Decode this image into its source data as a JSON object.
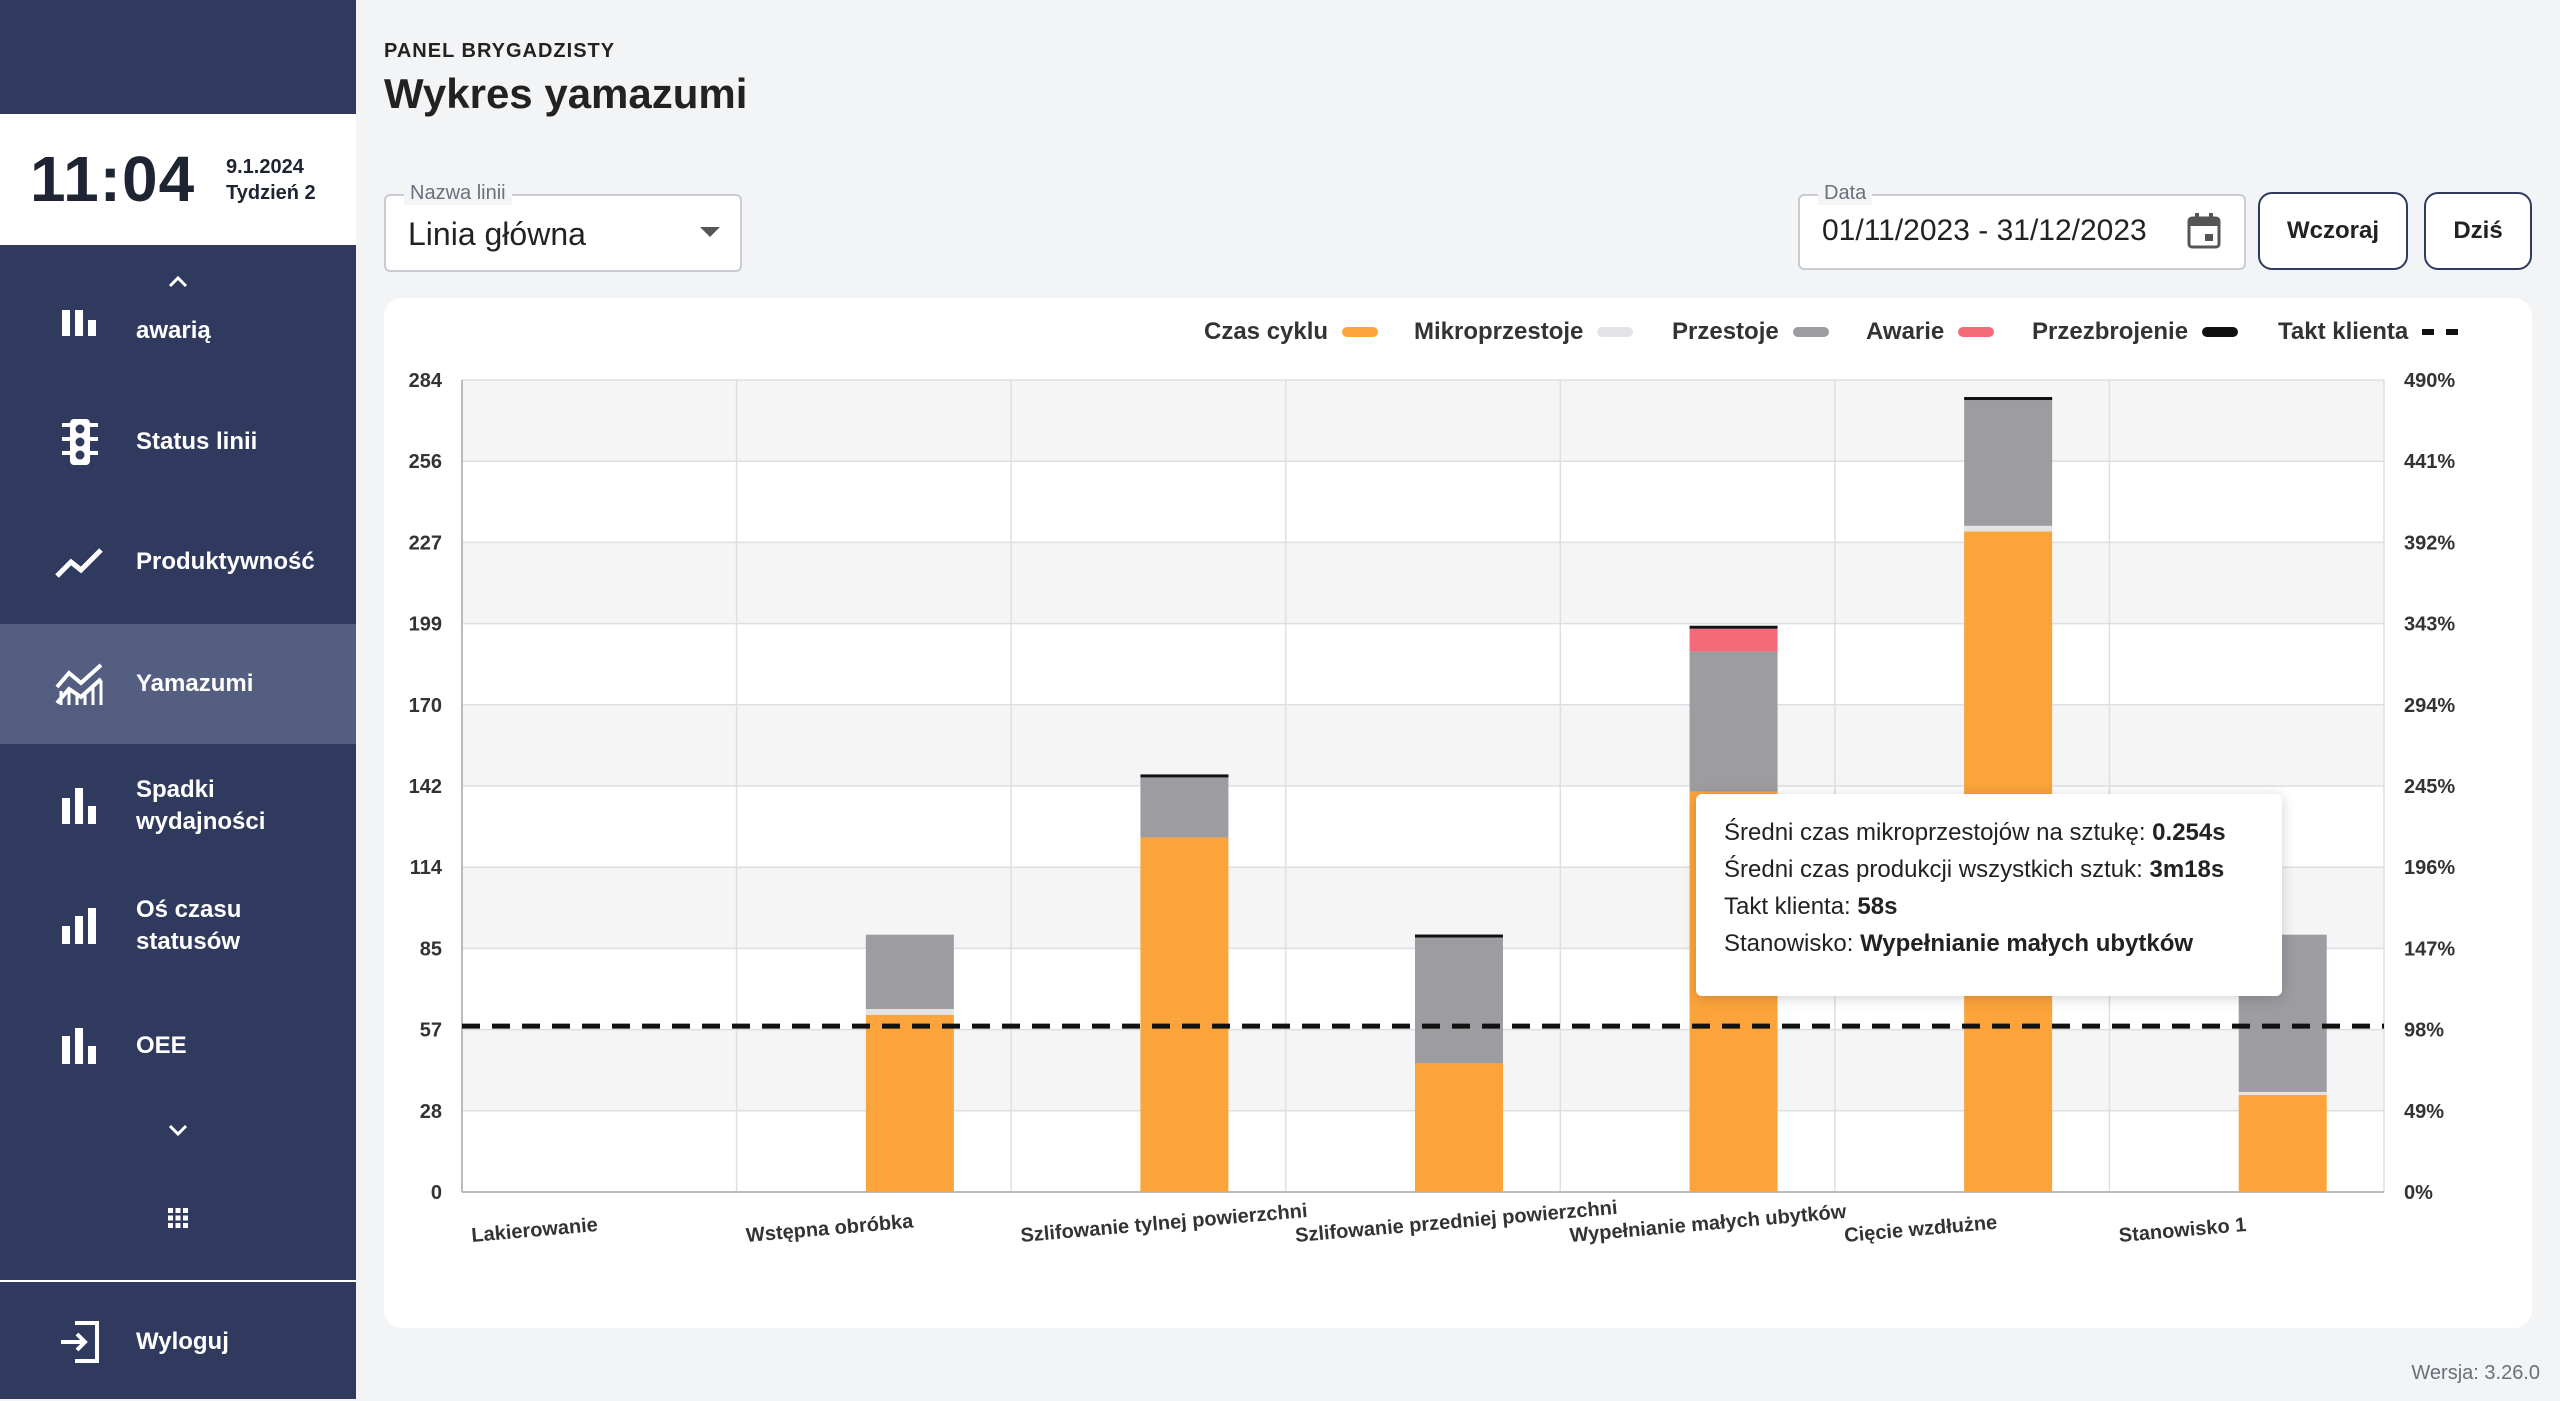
{
  "sidebar": {
    "clock": {
      "time": "11:04",
      "date": "9.1.2024",
      "week": "Tydzień 2"
    },
    "items": [
      {
        "label": "awarią",
        "icon": "bar-chart-icon"
      },
      {
        "label": "Status linii",
        "icon": "traffic-light-icon"
      },
      {
        "label": "Produktywność",
        "icon": "trending-up-icon"
      },
      {
        "label": "Yamazumi",
        "icon": "area-chart-icon",
        "active": true
      },
      {
        "label": "Spadki wydajności",
        "icon": "bar-chart-icon"
      },
      {
        "label": "Oś czasu statusów",
        "icon": "bar-chart-icon"
      },
      {
        "label": "OEE",
        "icon": "bar-chart-icon"
      }
    ],
    "logout_label": "Wyloguj"
  },
  "header": {
    "overline": "PANEL BRYGADZISTY",
    "title": "Wykres yamazumi"
  },
  "filters": {
    "line": {
      "label": "Nazwa linii",
      "value": "Linia główna"
    },
    "date": {
      "label": "Data",
      "value": "01/11/2023 - 31/12/2023"
    },
    "yesterday_label": "Wczoraj",
    "today_label": "Dziś"
  },
  "colors": {
    "cycle": "#fba43b",
    "micro": "#e4e4e6",
    "downtime": "#9d9ca1",
    "failure": "#f46a78",
    "changeover": "#111111",
    "takt": "#111111"
  },
  "chart_data": {
    "type": "bar",
    "stacked": true,
    "categories": [
      "Lakierowanie",
      "Wstępna obróbka",
      "Szlifowanie tylnej powierzchni",
      "Szlifowanie przedniej powierzchni",
      "Wypełnianie małych ubytków",
      "Cięcie wzdłużne",
      "Stanowisko 1"
    ],
    "series": [
      {
        "name": "Czas cyklu",
        "color_key": "cycle",
        "values": [
          0,
          62,
          124,
          45,
          140,
          231,
          34
        ]
      },
      {
        "name": "Mikroprzestoje",
        "color_key": "micro",
        "values": [
          0,
          2,
          0,
          0,
          0,
          2,
          1
        ]
      },
      {
        "name": "Przestoje",
        "color_key": "downtime",
        "values": [
          0,
          26,
          21,
          44,
          49,
          44,
          55
        ]
      },
      {
        "name": "Awarie",
        "color_key": "failure",
        "values": [
          0,
          0,
          0,
          0,
          8,
          0,
          0
        ]
      },
      {
        "name": "Przezbrojenie",
        "color_key": "changeover",
        "values": [
          0,
          0,
          1,
          1,
          1,
          1,
          0
        ]
      }
    ],
    "takt": {
      "name": "Takt klienta",
      "value": 58
    },
    "y_ticks": [
      "0",
      "28",
      "57",
      "85",
      "114",
      "142",
      "170",
      "199",
      "227",
      "256",
      "284"
    ],
    "y_right_ticks": [
      "0%",
      "49%",
      "98%",
      "147%",
      "196%",
      "245%",
      "294%",
      "343%",
      "392%",
      "441%",
      "490%"
    ],
    "ylim": [
      0,
      284
    ],
    "grid": true,
    "legend_position": "top-right"
  },
  "tooltip": {
    "line1_label": "Średni czas mikroprzestojów na sztukę:",
    "line1_value": "0.254s",
    "line2_label": "Średni czas produkcji wszystkich sztuk:",
    "line2_value": "3m18s",
    "line3_label": "Takt klienta:",
    "line3_value": "58s",
    "line4_label": "Stanowisko:",
    "line4_value": "Wypełnianie małych ubytków"
  },
  "version": "Wersja: 3.26.0"
}
